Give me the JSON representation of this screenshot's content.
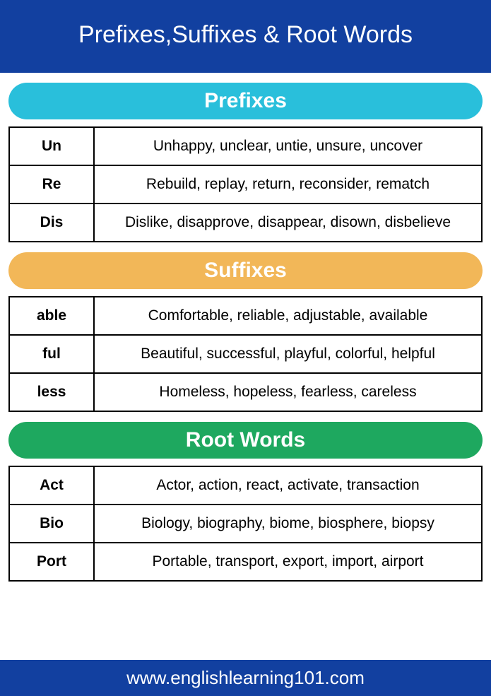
{
  "page": {
    "title": "Prefixes,Suffixes & Root Words",
    "header_bg": "#1240a0",
    "header_color": "#ffffff",
    "footer_text": "www.englishlearning101.com",
    "footer_bg": "#1240a0",
    "footer_color": "#ffffff",
    "body_bg": "#ffffff",
    "border_color": "#000000",
    "font_family": "Arial, Helvetica, sans-serif"
  },
  "sections": {
    "prefixes": {
      "label": "Prefixes",
      "header_bg": "#29bfdb",
      "rows": {
        "0": {
          "term": "Un",
          "examples": "Unhappy, unclear, untie, unsure, uncover"
        },
        "1": {
          "term": "Re",
          "examples": "Rebuild, replay, return, reconsider, rematch"
        },
        "2": {
          "term": "Dis",
          "examples": "Dislike, disapprove, disappear, disown, disbelieve"
        }
      }
    },
    "suffixes": {
      "label": "Suffixes",
      "header_bg": "#f2b758",
      "rows": {
        "0": {
          "term": "able",
          "examples": "Comfortable, reliable, adjustable, available"
        },
        "1": {
          "term": "ful",
          "examples": "Beautiful, successful, playful, colorful, helpful"
        },
        "2": {
          "term": "less",
          "examples": "Homeless, hopeless, fearless, careless"
        }
      }
    },
    "roots": {
      "label": "Root Words",
      "header_bg": "#1ea85f",
      "rows": {
        "0": {
          "term": "Act",
          "examples": "Actor, action, react, activate, transaction"
        },
        "1": {
          "term": "Bio",
          "examples": "Biology, biography, biome, biosphere, biopsy"
        },
        "2": {
          "term": "Port",
          "examples": "Portable, transport, export, import, airport"
        }
      }
    }
  }
}
